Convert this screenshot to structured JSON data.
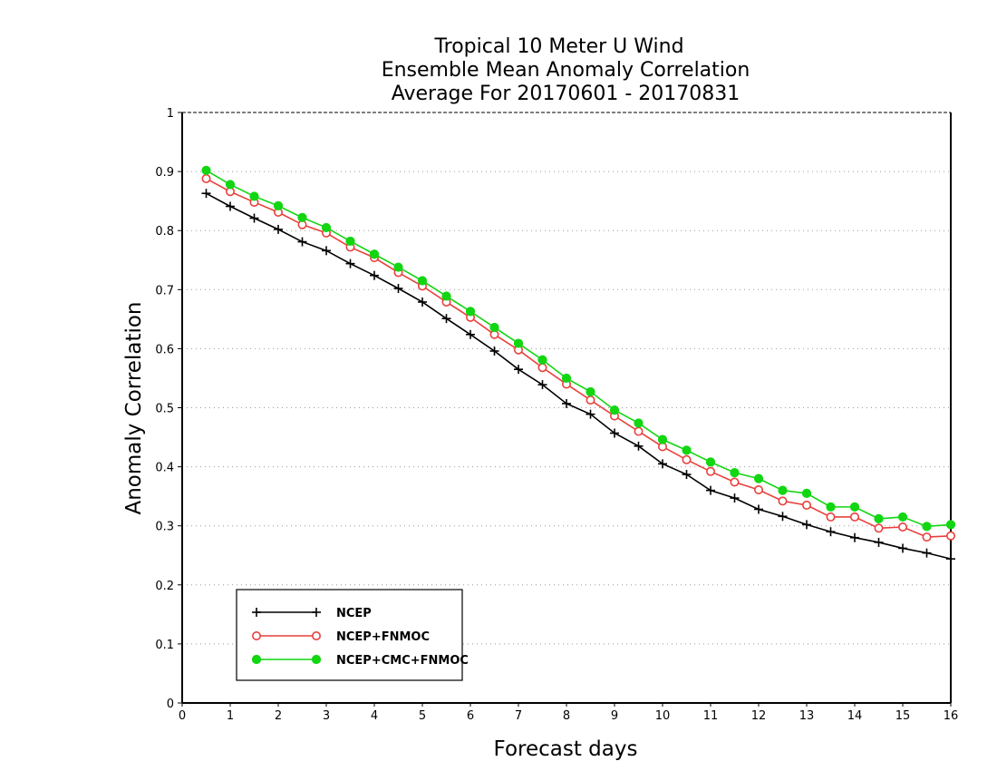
{
  "chart_data": {
    "type": "line",
    "title": [
      "Tropical 10 Meter U Wind",
      "Ensemble Mean Anomaly Correlation",
      "Average For 20170601 - 20170831"
    ],
    "xlabel": "Forecast days",
    "ylabel": "Anomaly Correlation",
    "xlim": [
      0,
      16
    ],
    "ylim": [
      0,
      1
    ],
    "xticks": [
      "0",
      "1",
      "2",
      "3",
      "4",
      "5",
      "6",
      "7",
      "8",
      "9",
      "10",
      "11",
      "12",
      "13",
      "14",
      "15",
      "16"
    ],
    "yticks": [
      "0",
      "0.1",
      "0.2",
      "0.3",
      "0.4",
      "0.5",
      "0.6",
      "0.7",
      "0.8",
      "0.9",
      "1"
    ],
    "grid": "horizontal-dotted",
    "legend_position": "bottom-left",
    "x": [
      0.5,
      1,
      1.5,
      2,
      2.5,
      3,
      3.5,
      4,
      4.5,
      5,
      5.5,
      6,
      6.5,
      7,
      7.5,
      8,
      8.5,
      9,
      9.5,
      10,
      10.5,
      11,
      11.5,
      12,
      12.5,
      13,
      13.5,
      14,
      14.5,
      15,
      15.5,
      16
    ],
    "series": [
      {
        "name": "NCEP",
        "color": "#000000",
        "marker": "plus",
        "values": [
          0.863,
          0.841,
          0.821,
          0.802,
          0.781,
          0.766,
          0.744,
          0.724,
          0.702,
          0.679,
          0.651,
          0.624,
          0.596,
          0.565,
          0.539,
          0.507,
          0.489,
          0.457,
          0.435,
          0.405,
          0.387,
          0.36,
          0.347,
          0.328,
          0.316,
          0.302,
          0.29,
          0.28,
          0.272,
          0.262,
          0.254,
          0.244
        ]
      },
      {
        "name": "NCEP+FNMOC",
        "color": "#e8403c",
        "marker": "open-circle",
        "values": [
          0.888,
          0.866,
          0.848,
          0.831,
          0.81,
          0.796,
          0.772,
          0.754,
          0.729,
          0.706,
          0.679,
          0.653,
          0.624,
          0.598,
          0.568,
          0.54,
          0.513,
          0.486,
          0.46,
          0.434,
          0.412,
          0.392,
          0.374,
          0.361,
          0.342,
          0.335,
          0.315,
          0.315,
          0.296,
          0.298,
          0.281,
          0.283
        ]
      },
      {
        "name": "NCEP+CMC+FNMOC",
        "color": "#11d611",
        "marker": "filled-circle",
        "values": [
          0.902,
          0.878,
          0.858,
          0.842,
          0.822,
          0.805,
          0.782,
          0.76,
          0.738,
          0.715,
          0.689,
          0.663,
          0.636,
          0.609,
          0.581,
          0.55,
          0.527,
          0.496,
          0.474,
          0.446,
          0.428,
          0.408,
          0.39,
          0.38,
          0.36,
          0.355,
          0.332,
          0.332,
          0.312,
          0.315,
          0.299,
          0.302
        ]
      }
    ]
  }
}
